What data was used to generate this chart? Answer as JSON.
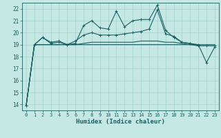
{
  "xlabel": "Humidex (Indice chaleur)",
  "background_color": "#c5e8e5",
  "grid_color": "#a8d4d0",
  "line_color": "#1a6060",
  "xlim": [
    -0.5,
    23.5
  ],
  "ylim": [
    13.5,
    22.5
  ],
  "xticks": [
    0,
    1,
    2,
    3,
    4,
    5,
    6,
    7,
    8,
    9,
    10,
    11,
    12,
    13,
    14,
    15,
    16,
    17,
    18,
    19,
    20,
    21,
    22,
    23
  ],
  "yticks": [
    14,
    15,
    16,
    17,
    18,
    19,
    20,
    21,
    22
  ],
  "x": [
    0,
    1,
    2,
    3,
    4,
    5,
    6,
    7,
    8,
    9,
    10,
    11,
    12,
    13,
    14,
    15,
    16,
    17,
    18,
    19,
    20,
    21,
    22,
    23
  ],
  "line1": [
    13.9,
    19.0,
    19.6,
    19.1,
    19.2,
    19.0,
    19.1,
    20.6,
    21.0,
    20.4,
    20.3,
    21.8,
    20.5,
    21.0,
    21.1,
    21.1,
    22.3,
    20.2,
    19.6,
    19.2,
    19.1,
    19.0,
    17.5,
    18.8
  ],
  "line2": [
    13.9,
    19.0,
    19.6,
    19.2,
    19.3,
    19.0,
    19.3,
    19.8,
    20.0,
    19.8,
    19.8,
    19.8,
    19.9,
    20.0,
    20.1,
    20.3,
    21.9,
    19.9,
    19.7,
    19.2,
    19.1,
    18.9,
    18.9,
    18.9
  ],
  "line3": [
    13.9,
    19.0,
    19.0,
    19.0,
    19.0,
    19.0,
    19.0,
    19.0,
    19.0,
    19.0,
    19.0,
    19.0,
    19.0,
    19.0,
    19.0,
    19.0,
    19.0,
    19.0,
    19.0,
    19.0,
    19.0,
    19.0,
    19.0,
    19.0
  ],
  "line4": [
    13.9,
    19.0,
    19.0,
    19.0,
    19.0,
    19.0,
    19.0,
    19.1,
    19.2,
    19.2,
    19.2,
    19.2,
    19.2,
    19.2,
    19.3,
    19.3,
    19.3,
    19.2,
    19.2,
    19.1,
    19.0,
    18.9,
    18.9,
    18.9
  ]
}
